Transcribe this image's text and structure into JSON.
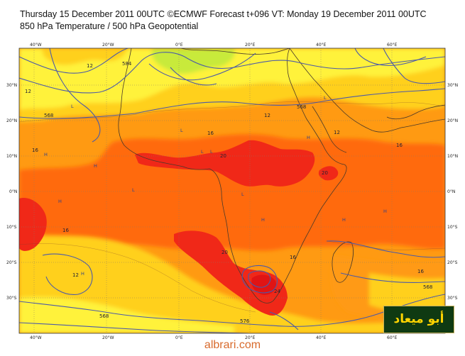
{
  "header": {
    "line1": "Thursday 15 December 2011 00UTC ©ECMWF Forecast t+096 VT: Monday 19 December 2011 00UTC",
    "line2": "850 hPa Temperature / 500 hPa Geopotential"
  },
  "axes": {
    "top_lon": [
      "40°W",
      "20°W",
      "0°E",
      "20°E",
      "40°E",
      "60°E"
    ],
    "bottom_lon": [
      "40°W",
      "20°W",
      "0°E",
      "20°E",
      "40°E",
      "60°E"
    ],
    "left_lat": [
      "30°N",
      "20°N",
      "10°N",
      "0°N",
      "10°S",
      "20°S",
      "30°S"
    ],
    "right_lat": [
      "30°N",
      "20°N",
      "10°N",
      "0°N",
      "10°S",
      "20°S",
      "30°S"
    ]
  },
  "contour_labels": {
    "temp_12a": "12",
    "temp_12b": "12",
    "temp_12c": "12",
    "temp_12d": "12",
    "temp_16a": "16",
    "temp_16b": "16",
    "temp_16c": "16",
    "temp_16d": "16",
    "temp_16e": "16",
    "temp_16f": "16",
    "temp_20a": "20",
    "temp_20b": "20",
    "temp_20c": "20",
    "temp_24": "24",
    "geo_568a": "568",
    "geo_568b": "568",
    "geo_568c": "568",
    "geo_568d": "568",
    "geo_576": "576",
    "geo_584": "584"
  },
  "pressure_marks": {
    "high": "H",
    "low": "L"
  },
  "colors": {
    "cold": "#c8ea3a",
    "cool": "#fff23b",
    "mild": "#ffd01a",
    "warm": "#ff9a12",
    "hot": "#ff6a0e",
    "very_hot": "#f02818",
    "geopotential_line": "#4b5aa8"
  },
  "logo_text": "أبو ميعاد",
  "credit": "albrari.com"
}
